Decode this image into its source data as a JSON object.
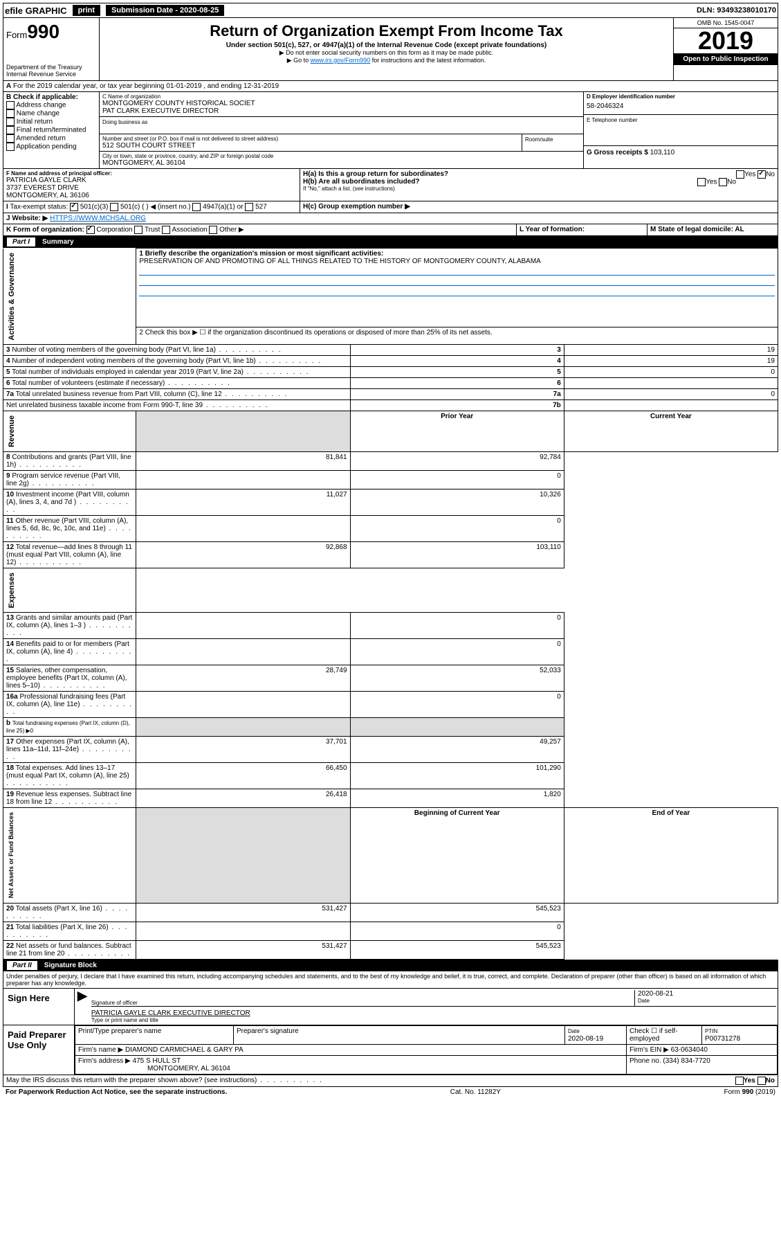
{
  "topbar": {
    "efile": "efile GRAPHIC",
    "print": "print",
    "subdate_lbl": "Submission Date - 2020-08-25",
    "dln": "DLN: 93493238010170"
  },
  "hdr": {
    "form": "Form",
    "num": "990",
    "dept": "Department of the Treasury\nInternal Revenue Service",
    "title": "Return of Organization Exempt From Income Tax",
    "sub": "Under section 501(c), 527, or 4947(a)(1) of the Internal Revenue Code (except private foundations)",
    "note1": "▶ Do not enter social security numbers on this form as it may be made public.",
    "note2a": "▶ Go to ",
    "note2link": "www.irs.gov/Form990",
    "note2b": " for instructions and the latest information.",
    "omb": "OMB No. 1545-0047",
    "year": "2019",
    "open": "Open to Public Inspection"
  },
  "A": {
    "text": "For the 2019 calendar year, or tax year beginning 01-01-2019    , and ending 12-31-2019"
  },
  "B": {
    "hdr": "B Check if applicable:",
    "items": [
      "Address change",
      "Name change",
      "Initial return",
      "Final return/terminated",
      "Amended return",
      "Application pending"
    ]
  },
  "C": {
    "lbl": "C Name of organization",
    "name": "MONTGOMERY COUNTY HISTORICAL SOCIET",
    "name2": "PAT CLARK EXECUTIVE DIRECTOR",
    "dba": "Doing business as",
    "addr_lbl": "Number and street (or P.O. box if mail is not delivered to street address)",
    "addr": "512 SOUTH COURT STREET",
    "room": "Room/suite",
    "city_lbl": "City or town, state or province, country, and ZIP or foreign postal code",
    "city": "MONTGOMERY, AL  36104"
  },
  "D": {
    "lbl": "D Employer identification number",
    "val": "58-2046324"
  },
  "E": {
    "lbl": "E Telephone number"
  },
  "F": {
    "lbl": "F  Name and address of principal officer:",
    "name": "PATRICIA GAYLE CLARK",
    "addr": "3737 EVEREST DRIVE",
    "city": "MONTGOMERY, AL  36106"
  },
  "G": {
    "lbl": "G Gross receipts $",
    "val": "103,110"
  },
  "H": {
    "a": "H(a)  Is this a group return for subordinates?",
    "b": "H(b)  Are all subordinates included?",
    "bnote": "If \"No,\" attach a list. (see instructions)",
    "c": "H(c)  Group exemption number ▶",
    "yes": "Yes",
    "no": "No"
  },
  "I": {
    "lbl": "Tax-exempt status:",
    "o1": "501(c)(3)",
    "o2": "501(c) (   ) ◀ (insert no.)",
    "o3": "4947(a)(1) or",
    "o4": "527"
  },
  "J": {
    "lbl": "Website: ▶",
    "val": "HTTPS://WWW.MCHSAL.ORG"
  },
  "K": {
    "lbl": "K Form of organization:",
    "o1": "Corporation",
    "o2": "Trust",
    "o3": "Association",
    "o4": "Other ▶"
  },
  "L": {
    "lbl": "L Year of formation:"
  },
  "M": {
    "lbl": "M State of legal domicile: AL"
  },
  "p1": {
    "part": "Part I",
    "title": "Summary"
  },
  "side": {
    "ag": "Activities & Governance",
    "rev": "Revenue",
    "exp": "Expenses",
    "na": "Net Assets or Fund Balances"
  },
  "s1": {
    "l1": "1  Briefly describe the organization's mission or most significant activities:",
    "l1v": "PRESERVATION OF AND PROMOTING OF ALL THINGS RELATED TO THE HISTORY OF MONTGOMERY COUNTY, ALABAMA",
    "l2": "2   Check this box ▶ ☐  if the organization discontinued its operations or disposed of more than 25% of its net assets.",
    "rows": [
      {
        "n": "3",
        "t": "Number of voting members of the governing body (Part VI, line 1a)",
        "b": "3",
        "v": "19"
      },
      {
        "n": "4",
        "t": "Number of independent voting members of the governing body (Part VI, line 1b)",
        "b": "4",
        "v": "19"
      },
      {
        "n": "5",
        "t": "Total number of individuals employed in calendar year 2019 (Part V, line 2a)",
        "b": "5",
        "v": "0"
      },
      {
        "n": "6",
        "t": "Total number of volunteers (estimate if necessary)",
        "b": "6",
        "v": ""
      },
      {
        "n": "7a",
        "t": "Total unrelated business revenue from Part VIII, column (C), line 12",
        "b": "7a",
        "v": "0"
      },
      {
        "n": "",
        "t": "Net unrelated business taxable income from Form 990-T, line 39",
        "b": "7b",
        "v": ""
      }
    ],
    "py": "Prior Year",
    "cy": "Current Year",
    "rev": [
      {
        "n": "8",
        "t": "Contributions and grants (Part VIII, line 1h)",
        "p": "81,841",
        "c": "92,784"
      },
      {
        "n": "9",
        "t": "Program service revenue (Part VIII, line 2g)",
        "p": "",
        "c": "0"
      },
      {
        "n": "10",
        "t": "Investment income (Part VIII, column (A), lines 3, 4, and 7d )",
        "p": "11,027",
        "c": "10,326"
      },
      {
        "n": "11",
        "t": "Other revenue (Part VIII, column (A), lines 5, 6d, 8c, 9c, 10c, and 11e)",
        "p": "",
        "c": "0"
      },
      {
        "n": "12",
        "t": "Total revenue—add lines 8 through 11 (must equal Part VIII, column (A), line 12)",
        "p": "92,868",
        "c": "103,110"
      }
    ],
    "exp": [
      {
        "n": "13",
        "t": "Grants and similar amounts paid (Part IX, column (A), lines 1–3 )",
        "p": "",
        "c": "0"
      },
      {
        "n": "14",
        "t": "Benefits paid to or for members (Part IX, column (A), line 4)",
        "p": "",
        "c": "0"
      },
      {
        "n": "15",
        "t": "Salaries, other compensation, employee benefits (Part IX, column (A), lines 5–10)",
        "p": "28,749",
        "c": "52,033"
      },
      {
        "n": "16a",
        "t": "Professional fundraising fees (Part IX, column (A), line 11e)",
        "p": "",
        "c": "0"
      },
      {
        "n": "b",
        "t": "Total fundraising expenses (Part IX, column (D), line 25) ▶0",
        "p": "grey",
        "c": "grey"
      },
      {
        "n": "17",
        "t": "Other expenses (Part IX, column (A), lines 11a–11d, 11f–24e)",
        "p": "37,701",
        "c": "49,257"
      },
      {
        "n": "18",
        "t": "Total expenses. Add lines 13–17 (must equal Part IX, column (A), line 25)",
        "p": "66,450",
        "c": "101,290"
      },
      {
        "n": "19",
        "t": "Revenue less expenses. Subtract line 18 from line 12",
        "p": "26,418",
        "c": "1,820"
      }
    ],
    "by": "Beginning of Current Year",
    "ey": "End of Year",
    "na": [
      {
        "n": "20",
        "t": "Total assets (Part X, line 16)",
        "p": "531,427",
        "c": "545,523"
      },
      {
        "n": "21",
        "t": "Total liabilities (Part X, line 26)",
        "p": "",
        "c": "0"
      },
      {
        "n": "22",
        "t": "Net assets or fund balances. Subtract line 21 from line 20",
        "p": "531,427",
        "c": "545,523"
      }
    ]
  },
  "p2": {
    "part": "Part II",
    "title": "Signature Block",
    "decl": "Under penalties of perjury, I declare that I have examined this return, including accompanying schedules and statements, and to the best of my knowledge and belief, it is true, correct, and complete. Declaration of preparer (other than officer) is based on all information of which preparer has any knowledge."
  },
  "sign": {
    "here": "Sign Here",
    "sig": "Signature of officer",
    "date": "2020-08-21",
    "datelbl": "Date",
    "name": "PATRICIA GAYLE CLARK  EXECUTIVE DIRECTOR",
    "namelbl": "Type or print name and title"
  },
  "paid": {
    "title": "Paid Preparer Use Only",
    "h1": "Print/Type preparer's name",
    "h2": "Preparer's signature",
    "h3": "Date",
    "h3v": "2020-08-19",
    "h4": "Check ☐ if self-employed",
    "h5": "PTIN",
    "h5v": "P00731278",
    "firm": "Firm's name     ▶",
    "firmv": "DIAMOND CARMICHAEL & GARY PA",
    "ein": "Firm's EIN ▶",
    "einv": "63-0634040",
    "addr": "Firm's address ▶",
    "addrv": "475 S HULL ST",
    "city": "MONTGOMERY, AL  36104",
    "ph": "Phone no.",
    "phv": "(334) 834-7720"
  },
  "discuss": "May the IRS discuss this return with the preparer shown above? (see instructions)",
  "foot": {
    "l": "For Paperwork Reduction Act Notice, see the separate instructions.",
    "m": "Cat. No. 11282Y",
    "r": "Form 990 (2019)"
  }
}
